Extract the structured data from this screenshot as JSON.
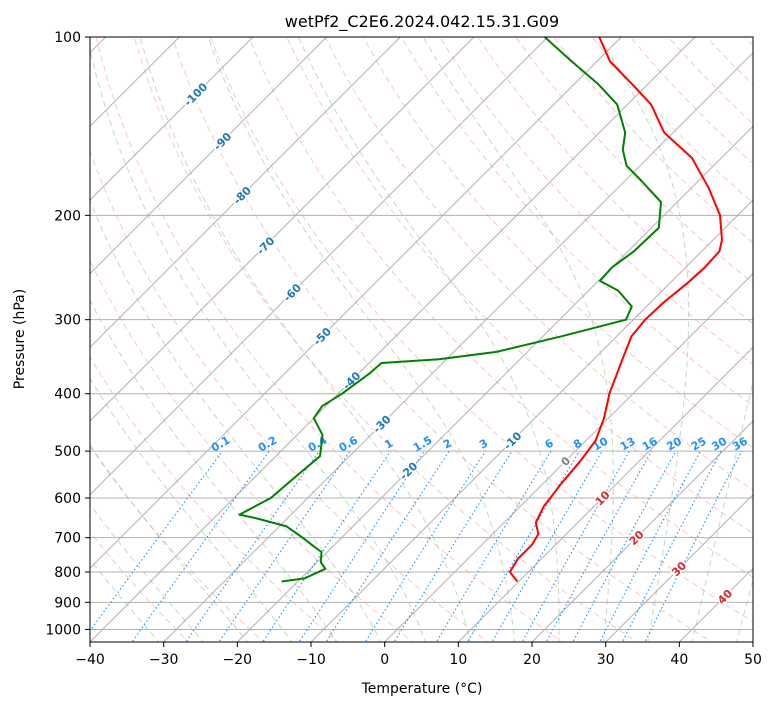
{
  "chart_data": {
    "type": "line",
    "title": "wetPf2_C2E6.2024.042.15.31.G09",
    "xlabel": "Temperature (°C)",
    "ylabel": "Pressure (hPa)",
    "xlim": [
      -40,
      50
    ],
    "ylim": [
      1050,
      100
    ],
    "y_scale": "log",
    "x_ticks": [
      -40,
      -30,
      -20,
      -10,
      0,
      10,
      20,
      30,
      40,
      50
    ],
    "y_ticks": [
      100,
      200,
      300,
      400,
      500,
      600,
      700,
      800,
      900,
      1000
    ],
    "grid": true,
    "series": [
      {
        "id": "temperature",
        "color": "#ff0000",
        "points": [
          [
            9.8,
            830
          ],
          [
            7.5,
            800
          ],
          [
            6.8,
            760
          ],
          [
            6.8,
            720
          ],
          [
            6.2,
            690
          ],
          [
            4.3,
            660
          ],
          [
            3.2,
            620
          ],
          [
            2.5,
            570
          ],
          [
            2.0,
            520
          ],
          [
            1.3,
            480
          ],
          [
            -0.6,
            440
          ],
          [
            -3.2,
            400
          ],
          [
            -6.1,
            350
          ],
          [
            -8.0,
            320
          ],
          [
            -8.4,
            300
          ],
          [
            -8.2,
            280
          ],
          [
            -7.6,
            260
          ],
          [
            -7.4,
            245
          ],
          [
            -7.6,
            230
          ],
          [
            -8.8,
            220
          ],
          [
            -12.4,
            200
          ],
          [
            -17.6,
            180
          ],
          [
            -24.0,
            160
          ],
          [
            -31.2,
            145
          ],
          [
            -36.8,
            130
          ],
          [
            -42.2,
            120
          ],
          [
            -48.2,
            110
          ],
          [
            -53.0,
            100
          ]
        ]
      },
      {
        "id": "dewpoint",
        "color": "#008000",
        "points": [
          [
            -22.2,
            830
          ],
          [
            -19.5,
            820
          ],
          [
            -18.0,
            790
          ],
          [
            -19.5,
            770
          ],
          [
            -20.8,
            740
          ],
          [
            -22.5,
            725
          ],
          [
            -25.3,
            700
          ],
          [
            -29.0,
            670
          ],
          [
            -34.0,
            650
          ],
          [
            -37.0,
            640
          ],
          [
            -35.0,
            600
          ],
          [
            -34.5,
            550
          ],
          [
            -34.0,
            510
          ],
          [
            -36.5,
            470
          ],
          [
            -40.0,
            440
          ],
          [
            -40.5,
            420
          ],
          [
            -39.5,
            400
          ],
          [
            -38.5,
            370
          ],
          [
            -38.3,
            355
          ],
          [
            -31.0,
            350
          ],
          [
            -24.2,
            340
          ],
          [
            -17.5,
            320
          ],
          [
            -11.0,
            300
          ],
          [
            -12.0,
            285
          ],
          [
            -16.0,
            268
          ],
          [
            -19.8,
            258
          ],
          [
            -20.0,
            245
          ],
          [
            -19.2,
            230
          ],
          [
            -19.0,
            210
          ],
          [
            -22.2,
            190
          ],
          [
            -27.7,
            175
          ],
          [
            -31.8,
            165
          ],
          [
            -34.5,
            155
          ],
          [
            -36.5,
            145
          ],
          [
            -41.4,
            130
          ],
          [
            -46.8,
            120
          ],
          [
            -53.4,
            110
          ],
          [
            -60.4,
            100
          ]
        ]
      }
    ],
    "isotherm_labels": [
      -100,
      -90,
      -80,
      -70,
      -60,
      -50,
      -40,
      -30,
      -20,
      -10,
      0,
      10,
      20,
      30,
      40
    ],
    "mixing_ratio_labels": [
      "0.1",
      "0.2",
      "0.4",
      "0.6",
      "1",
      "1.5",
      "2",
      "3",
      "4",
      "6",
      "8",
      "10",
      "13",
      "16",
      "20",
      "25",
      "30",
      "36"
    ],
    "mixing_ratio_values": [
      0.1,
      0.2,
      0.4,
      0.6,
      1,
      1.5,
      2,
      3,
      4,
      6,
      8,
      10,
      13,
      16,
      20,
      25,
      30,
      36
    ],
    "colors": {
      "temperature": "#ff0000",
      "dewpoint": "#008000",
      "grid": "#b0b0b0",
      "dry_adiabat": "#fa8072",
      "moist_adiabat": "#8fbc8f",
      "mixing_ratio": "#1e90ff",
      "label_cold": "#1f77b4",
      "label_warm": "#d62728"
    }
  }
}
